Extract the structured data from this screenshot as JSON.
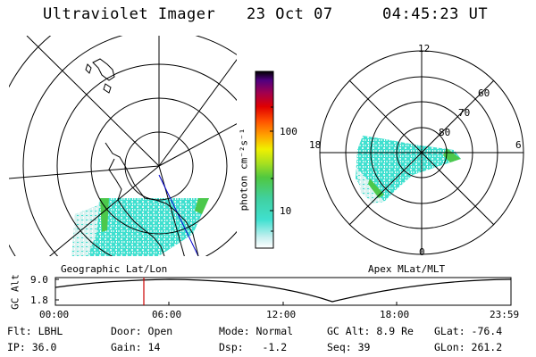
{
  "header": {
    "title": "Ultraviolet Imager",
    "date": "23 Oct 07",
    "time": "04:45:23 UT"
  },
  "colorbar": {
    "label": "photon cm⁻²s⁻¹",
    "ticks": [
      "100",
      "10"
    ]
  },
  "geographic_panel": {
    "label": "Geographic Lat/Lon"
  },
  "apex_panel": {
    "label": "Apex MLat/MLT",
    "mlt_labels": [
      "12",
      "18",
      "6",
      "0"
    ],
    "lat_labels": [
      "60",
      "70",
      "80"
    ]
  },
  "altitude_plot": {
    "ylabel": "GC Alt",
    "yticks": [
      "9.0",
      "1.8"
    ],
    "xticks": [
      "00:00",
      "06:00",
      "12:00",
      "18:00",
      "23:59"
    ]
  },
  "info": {
    "filter": "Flt: LBHL",
    "door": "Door: Open",
    "mode": "Mode: Normal",
    "gc_alt": "GC Alt: 8.9 Re",
    "glat": "GLat: -76.4",
    "ip": "IP: 36.0",
    "gain": "Gain: 14",
    "dsp": "Dsp:   -1.2",
    "seq": "Seq: 39",
    "glon": "GLon: 261.2"
  },
  "colors": {
    "aurora_cyan": "#40e0d0",
    "aurora_green": "#4cc84c",
    "marker_red": "#cc0000",
    "meridian_blue": "#0000cc"
  }
}
